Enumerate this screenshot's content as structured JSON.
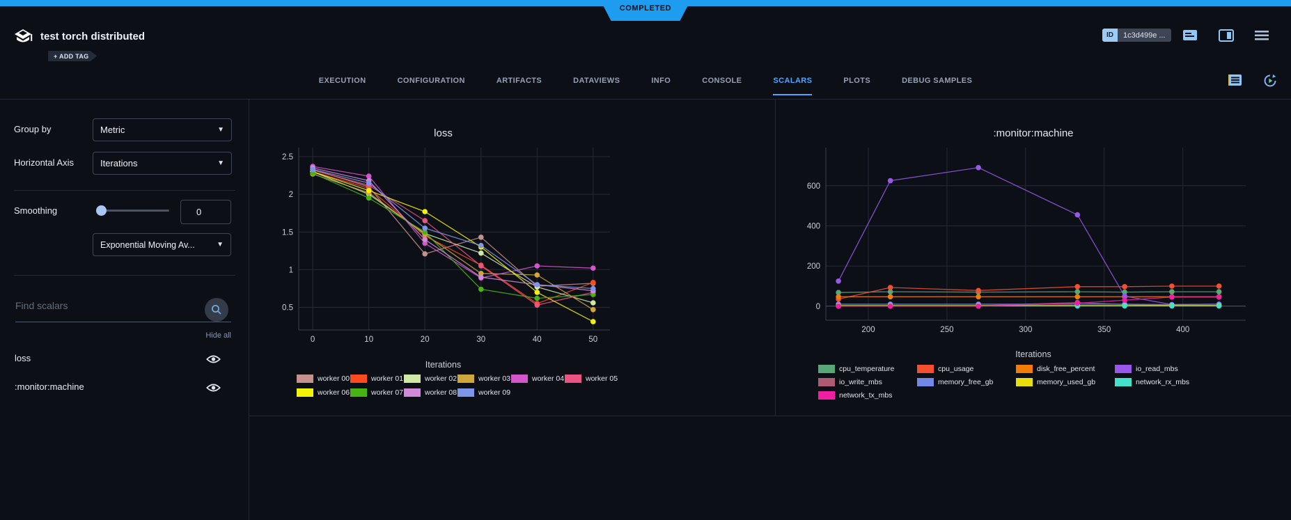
{
  "header": {
    "status_badge": "COMPLETED",
    "title": "test torch distributed",
    "add_tag": "+ ADD TAG",
    "id_label": "ID",
    "id_value": "1c3d499e ..."
  },
  "tabs": {
    "items": [
      "EXECUTION",
      "CONFIGURATION",
      "ARTIFACTS",
      "DATAVIEWS",
      "INFO",
      "CONSOLE",
      "SCALARS",
      "PLOTS",
      "DEBUG SAMPLES"
    ],
    "active": "SCALARS"
  },
  "sidebar": {
    "group_by": {
      "label": "Group by",
      "value": "Metric"
    },
    "horizontal_axis": {
      "label": "Horizontal Axis",
      "value": "Iterations"
    },
    "smoothing": {
      "label": "Smoothing",
      "value": "0",
      "type": "Exponential Moving Av..."
    },
    "search": {
      "placeholder": "Find scalars"
    },
    "hide_all": "Hide all",
    "metrics": [
      {
        "name": "loss"
      },
      {
        "name": ":monitor:machine"
      }
    ]
  },
  "colors": {
    "accent_blue": "#1e9cf0",
    "active_tab": "#4da6ff",
    "background": "#0c0f16",
    "grid": "#252a35"
  },
  "chart_data": [
    {
      "type": "line",
      "title": "loss",
      "xlabel": "Iterations",
      "x": [
        0,
        10,
        20,
        30,
        40,
        50
      ],
      "xticks": [
        0,
        10,
        20,
        30,
        40,
        50
      ],
      "yticks": [
        0.5,
        1,
        1.5,
        2,
        2.5
      ],
      "xlim": [
        -2.5,
        53
      ],
      "ylim": [
        0.2,
        2.62
      ],
      "legend_position": "bottom",
      "grid": true,
      "series": [
        {
          "name": "worker 00",
          "color": "#c5908e",
          "values": [
            2.33,
            2.1,
            1.21,
            1.43,
            0.78,
            0.82
          ]
        },
        {
          "name": "worker 01",
          "color": "#fd4b20",
          "values": [
            2.3,
            2.08,
            1.45,
            1.06,
            0.55,
            0.83
          ]
        },
        {
          "name": "worker 02",
          "color": "#cfe8a8",
          "values": [
            2.3,
            2.0,
            1.48,
            1.22,
            0.77,
            0.56
          ]
        },
        {
          "name": "worker 03",
          "color": "#cda73c",
          "values": [
            2.27,
            2.02,
            1.47,
            0.95,
            0.93,
            0.47
          ]
        },
        {
          "name": "worker 04",
          "color": "#d356cb",
          "values": [
            2.37,
            2.24,
            1.35,
            0.89,
            1.05,
            1.02
          ]
        },
        {
          "name": "worker 05",
          "color": "#ea547f",
          "values": [
            2.32,
            2.12,
            1.65,
            1.05,
            0.53,
            0.7
          ]
        },
        {
          "name": "worker 06",
          "color": "#f2f20c",
          "values": [
            2.3,
            2.05,
            1.77,
            1.3,
            0.7,
            0.31
          ]
        },
        {
          "name": "worker 07",
          "color": "#47b413",
          "values": [
            2.28,
            1.95,
            1.5,
            0.74,
            0.62,
            0.67
          ]
        },
        {
          "name": "worker 08",
          "color": "#cf8bd8",
          "values": [
            2.35,
            2.18,
            1.4,
            0.9,
            0.8,
            0.72
          ]
        },
        {
          "name": "worker 09",
          "color": "#7e96e8",
          "values": [
            2.33,
            2.15,
            1.55,
            1.32,
            0.8,
            0.75
          ]
        }
      ]
    },
    {
      "type": "line",
      "title": ":monitor:machine",
      "xlabel": "Iterations",
      "x": [
        181,
        214,
        270,
        333,
        363,
        393,
        423
      ],
      "xticks": [
        200,
        250,
        300,
        350,
        400
      ],
      "yticks": [
        0,
        200,
        400,
        600
      ],
      "xlim": [
        173,
        440
      ],
      "ylim": [
        -70,
        790
      ],
      "legend_position": "bottom",
      "grid": true,
      "series": [
        {
          "name": "cpu_temperature",
          "color": "#58a877",
          "values": [
            68,
            72,
            70,
            72,
            70,
            72,
            72
          ]
        },
        {
          "name": "cpu_usage",
          "color": "#f4502f",
          "values": [
            35,
            93,
            78,
            97,
            97,
            100,
            100
          ]
        },
        {
          "name": "disk_free_percent",
          "color": "#f07d0a",
          "values": [
            47,
            47,
            47,
            47,
            47,
            47,
            47
          ]
        },
        {
          "name": "io_read_mbs",
          "color": "#9859ea",
          "values": [
            125,
            625,
            690,
            455,
            50,
            8,
            10
          ]
        },
        {
          "name": "io_write_mbs",
          "color": "#af5a75",
          "values": [
            2,
            2,
            2,
            18,
            8,
            3,
            3
          ]
        },
        {
          "name": "memory_free_gb",
          "color": "#7287e6",
          "values": [
            10,
            10,
            10,
            10,
            10,
            8,
            10
          ]
        },
        {
          "name": "memory_used_gb",
          "color": "#e8e00a",
          "values": [
            3,
            3,
            3,
            3,
            3,
            3,
            3
          ]
        },
        {
          "name": "network_rx_mbs",
          "color": "#43e0cb",
          "values": [
            1,
            1,
            1,
            1,
            1,
            1,
            1
          ]
        },
        {
          "name": "network_tx_mbs",
          "color": "#f01fa2",
          "values": [
            0,
            0,
            0,
            15,
            30,
            45,
            45
          ]
        }
      ]
    }
  ]
}
